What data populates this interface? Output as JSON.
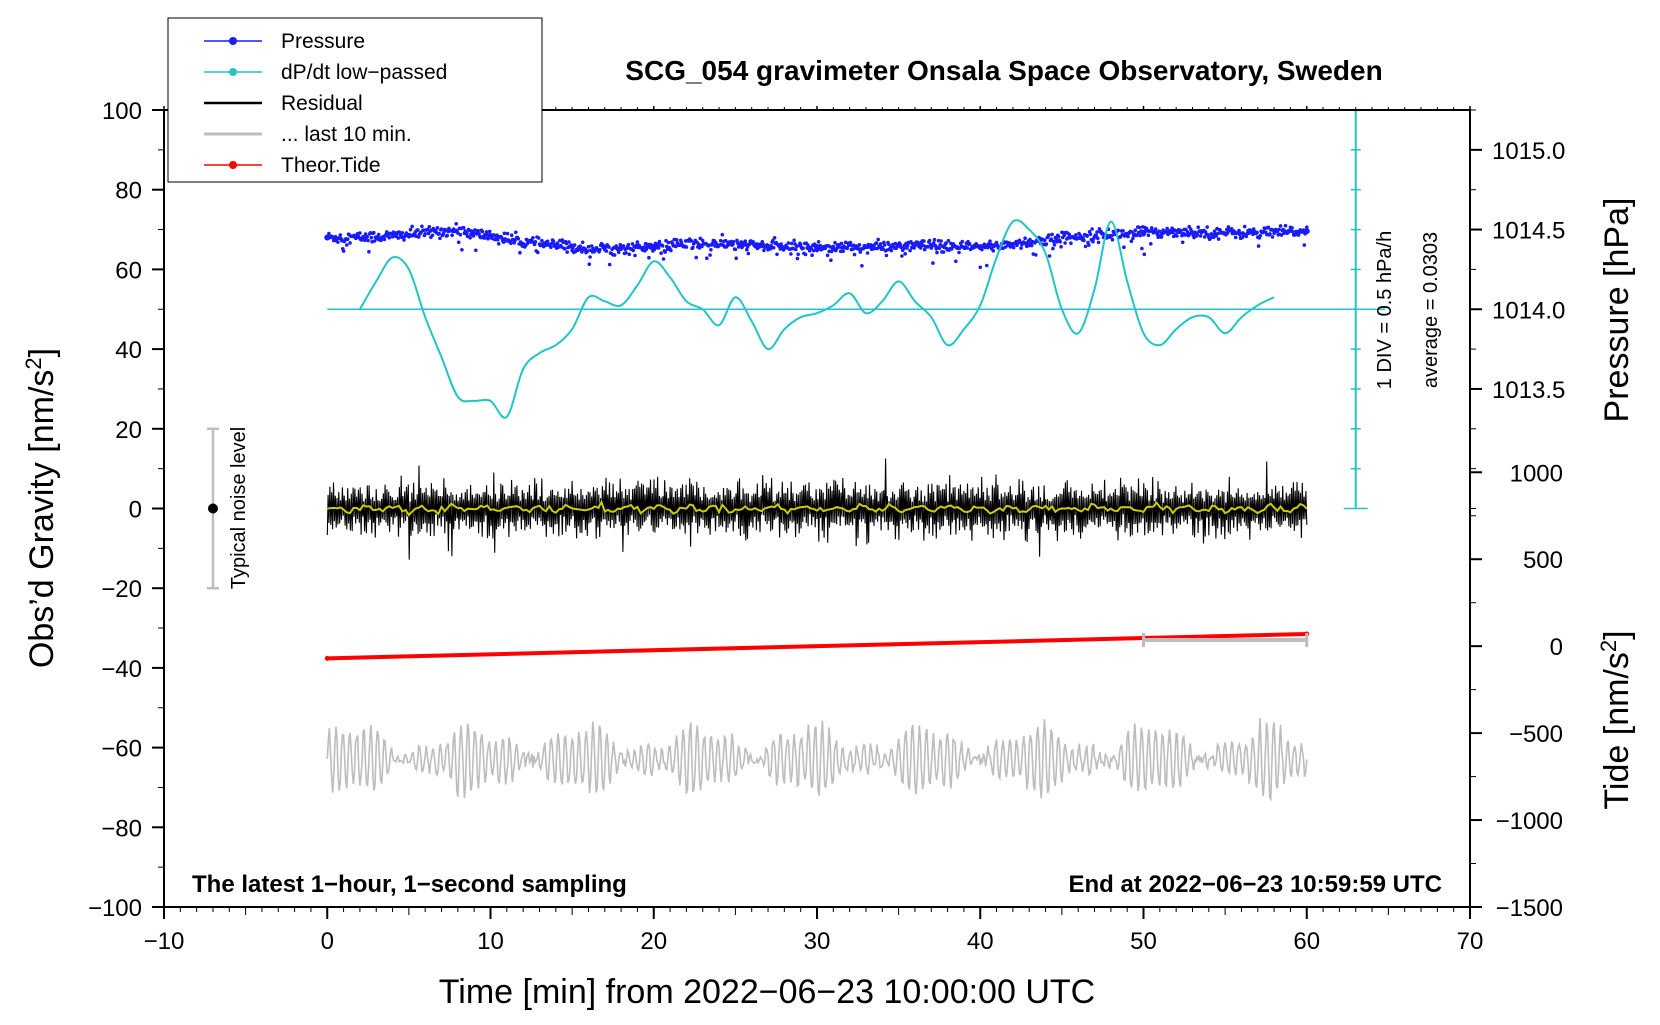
{
  "chart_data": {
    "type": "line",
    "title": "SCG_054 gravimeter Onsala Space Observatory, Sweden",
    "xlabel": "Time [min] from 2022−06−23 10:00:00 UTC",
    "ylabel_left": "Obs’d Gravity [nm/s",
    "ylabel_left_sup": "2",
    "ylabel_left_end": "]",
    "ylabel_right_pressure": "Pressure [hPa]",
    "ylabel_right_tide": "Tide [nm/s",
    "ylabel_right_tide_sup": "2",
    "ylabel_right_tide_end": "]",
    "xlim": [
      -10,
      70
    ],
    "ylim": [
      -100,
      100
    ],
    "x_ticks": [
      -10,
      0,
      10,
      20,
      30,
      40,
      50,
      60,
      70
    ],
    "x_tick_labels": [
      "−10",
      "0",
      "10",
      "20",
      "30",
      "40",
      "50",
      "60",
      "70"
    ],
    "y_ticks": [
      -100,
      -80,
      -60,
      -40,
      -20,
      0,
      20,
      40,
      60,
      80,
      100
    ],
    "y_tick_labels": [
      "−100",
      "−80",
      "−60",
      "−40",
      "−20",
      "0",
      "20",
      "40",
      "60",
      "80",
      "100"
    ],
    "pressure_axis": {
      "ticks": [
        1013.5,
        1014.0,
        1014.5,
        1015.0
      ],
      "labels": [
        "1013.5",
        "1014.0",
        "1014.5",
        "1015.0"
      ],
      "value_at_gravity_0": 1012.75,
      "value_at_gravity_100": 1015.25
    },
    "tide_axis": {
      "ticks": [
        -1500,
        -1000,
        -500,
        0,
        500,
        1000
      ],
      "labels": [
        "−1500",
        "−1000",
        "−500",
        "0",
        "500",
        "1000"
      ],
      "value_at_gravity_minus100": -1500,
      "value_at_gravity_20": 1250
    },
    "legend": {
      "position": "top-left",
      "entries": [
        {
          "label": "Pressure",
          "color": "#1a1aff",
          "marker": true
        },
        {
          "label": "dP/dt low−passed",
          "color": "#22c4c4",
          "marker": true
        },
        {
          "label": "Residual",
          "color": "#000000",
          "marker": false
        },
        {
          "label": "... last 10 min.",
          "color": "#bdbdbd",
          "marker": false
        },
        {
          "label": "Theor.Tide",
          "color": "#ff0000",
          "marker": true
        }
      ]
    },
    "series": [
      {
        "name": "Pressure",
        "axis": "pressure",
        "color": "#1a1aff",
        "x": [
          0,
          2,
          4,
          6,
          7,
          8,
          10,
          12,
          14,
          16,
          18,
          20,
          22,
          24,
          26,
          28,
          30,
          32,
          34,
          36,
          38,
          40,
          42,
          44,
          46,
          48,
          50,
          52,
          54,
          56,
          58,
          60
        ],
        "y": [
          1014.45,
          1014.45,
          1014.46,
          1014.48,
          1014.49,
          1014.49,
          1014.46,
          1014.42,
          1014.4,
          1014.38,
          1014.38,
          1014.39,
          1014.41,
          1014.41,
          1014.4,
          1014.39,
          1014.39,
          1014.39,
          1014.39,
          1014.4,
          1014.39,
          1014.39,
          1014.41,
          1014.43,
          1014.46,
          1014.47,
          1014.48,
          1014.49,
          1014.48,
          1014.48,
          1014.48,
          1014.49
        ]
      },
      {
        "name": "dP/dt low−passed",
        "axis": "gravity",
        "baseline": 50,
        "color": "#22c4c4",
        "x": [
          2,
          3,
          4,
          5,
          6,
          7,
          8,
          9,
          10,
          11,
          12,
          13,
          14,
          15,
          16,
          17,
          18,
          19,
          20,
          21,
          22,
          23,
          24,
          25,
          26,
          27,
          28,
          29,
          30,
          31,
          32,
          33,
          34,
          35,
          36,
          37,
          38,
          39,
          40,
          41,
          42,
          43,
          44,
          45,
          46,
          47,
          48,
          49,
          50,
          51,
          52,
          53,
          54,
          55,
          56,
          57,
          58
        ],
        "y": [
          50,
          57,
          63,
          60,
          48,
          38,
          28,
          27,
          27,
          23,
          35,
          39,
          41,
          45,
          53,
          52,
          51,
          56,
          62,
          58,
          52,
          50,
          46,
          53,
          47,
          40,
          45,
          48,
          49,
          51,
          54,
          49,
          52,
          57,
          52,
          48,
          41,
          45,
          51,
          63,
          72,
          70,
          64,
          50,
          44,
          55,
          72,
          57,
          44,
          41,
          45,
          48,
          48,
          44,
          48,
          51,
          53
        ]
      },
      {
        "name": "Residual",
        "axis": "gravity",
        "color": "#000000",
        "x_range": [
          0,
          60
        ],
        "center": 0,
        "amplitude_typical": 6,
        "amplitude_max": 16
      },
      {
        "name": "Residual smoothed",
        "axis": "gravity",
        "color": "#cccc00",
        "x_range": [
          0,
          60
        ],
        "center": 0
      },
      {
        "name": "... last 10 min.",
        "axis": "gravity",
        "color": "#bdbdbd",
        "x_range": [
          0,
          60
        ],
        "center": -63,
        "amplitude_typical": 7
      },
      {
        "name": "Theor.Tide",
        "axis": "tide",
        "color": "#ff0000",
        "x": [
          0,
          60
        ],
        "y": [
          -70,
          70
        ]
      }
    ],
    "annotations": {
      "noise_level_label": "Typical noise level",
      "noise_bar": {
        "x": -7,
        "y_center": 0,
        "y_low": -20,
        "y_high": 20
      },
      "scale_label_1": "1 DIV = 0.5 hPa/h",
      "scale_label_2": "average = 0.0303",
      "scale_bar": {
        "x": 63,
        "y_low": 0,
        "y_high": 100
      },
      "ten_min_bar": {
        "x_start": 50,
        "x_end": 60,
        "y": -33
      },
      "bottom_left": "The latest 1−hour, 1−second sampling",
      "bottom_right": "End at 2022−06−23 10:59:59 UTC"
    }
  }
}
